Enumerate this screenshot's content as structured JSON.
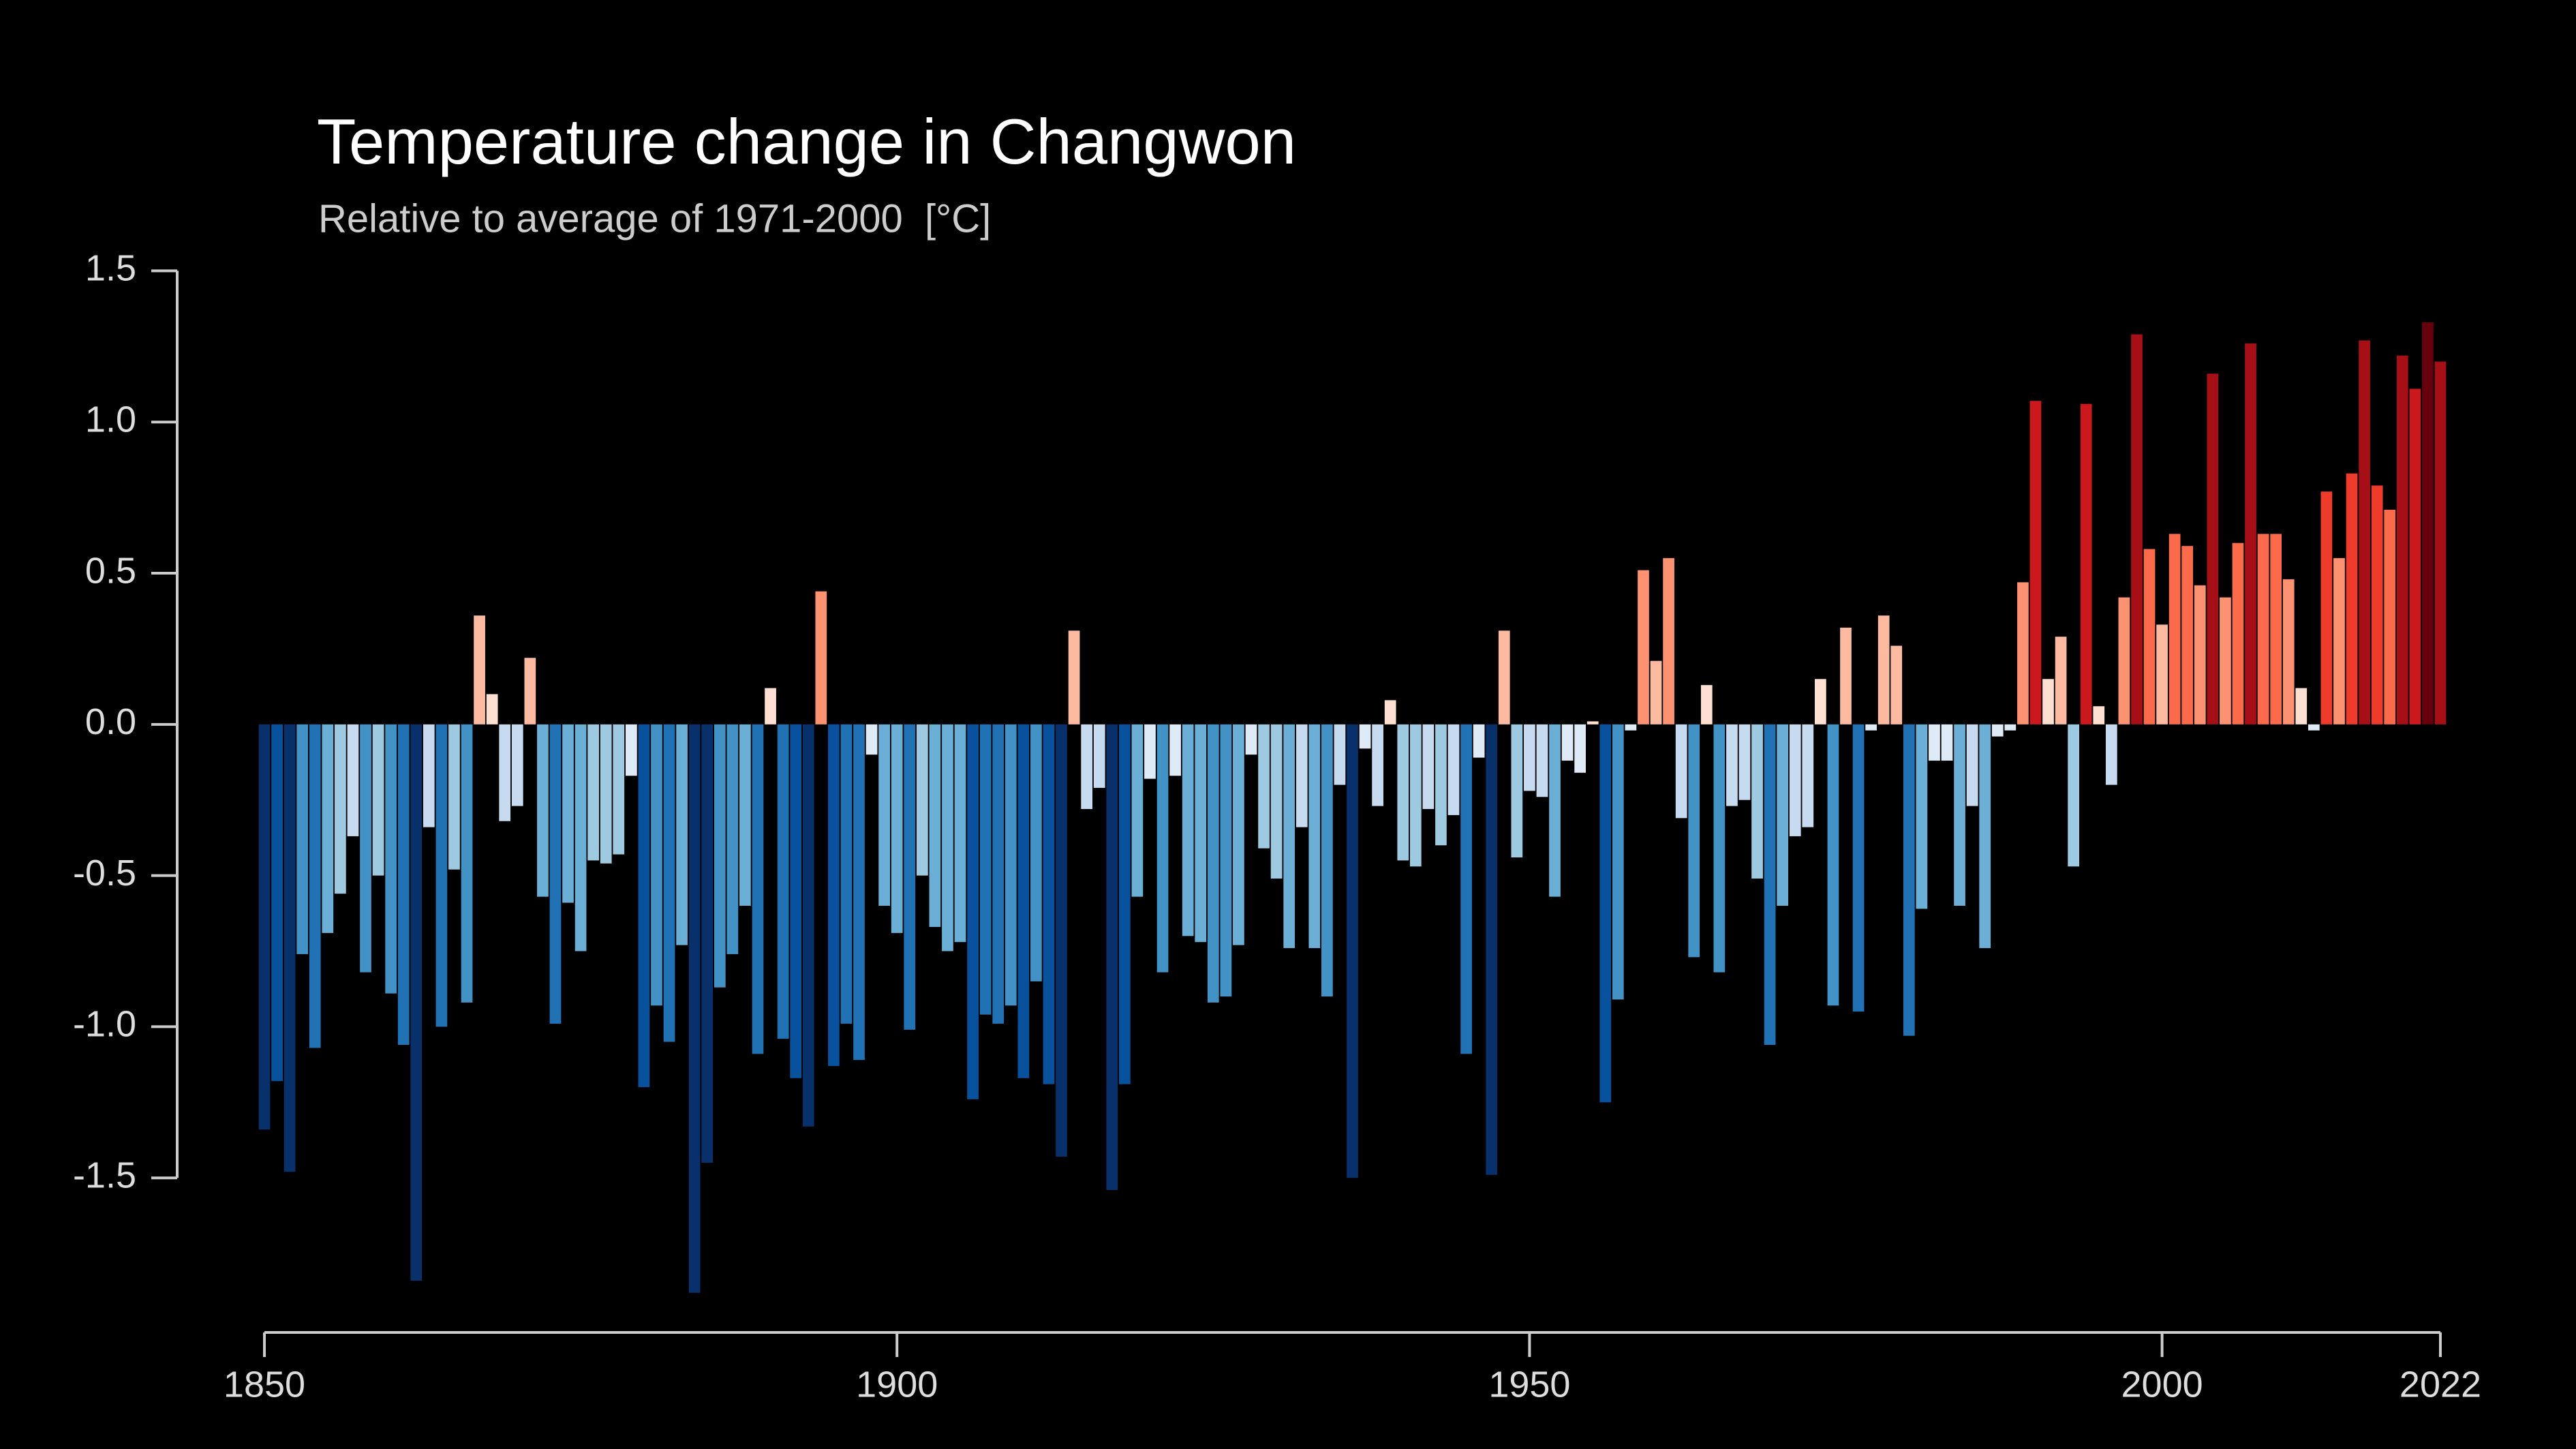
{
  "chart_data": {
    "type": "bar",
    "title": "Temperature change in Changwon",
    "subtitle": "Relative to average of 1971-2000  [°C]",
    "x": [
      1850,
      1851,
      1852,
      1853,
      1854,
      1855,
      1856,
      1857,
      1858,
      1859,
      1860,
      1861,
      1862,
      1863,
      1864,
      1865,
      1866,
      1867,
      1868,
      1869,
      1870,
      1871,
      1872,
      1873,
      1874,
      1875,
      1876,
      1877,
      1878,
      1879,
      1880,
      1881,
      1882,
      1883,
      1884,
      1885,
      1886,
      1887,
      1888,
      1889,
      1890,
      1891,
      1892,
      1893,
      1894,
      1895,
      1896,
      1897,
      1898,
      1899,
      1900,
      1901,
      1902,
      1903,
      1904,
      1905,
      1906,
      1907,
      1908,
      1909,
      1910,
      1911,
      1912,
      1913,
      1914,
      1915,
      1916,
      1917,
      1918,
      1919,
      1920,
      1921,
      1922,
      1923,
      1924,
      1925,
      1926,
      1927,
      1928,
      1929,
      1930,
      1931,
      1932,
      1933,
      1934,
      1935,
      1936,
      1937,
      1938,
      1939,
      1940,
      1941,
      1942,
      1943,
      1944,
      1945,
      1946,
      1947,
      1948,
      1949,
      1950,
      1951,
      1952,
      1953,
      1954,
      1955,
      1956,
      1957,
      1958,
      1959,
      1960,
      1961,
      1962,
      1963,
      1964,
      1965,
      1966,
      1967,
      1968,
      1969,
      1970,
      1971,
      1972,
      1973,
      1974,
      1975,
      1976,
      1977,
      1978,
      1979,
      1980,
      1981,
      1982,
      1983,
      1984,
      1985,
      1986,
      1987,
      1988,
      1989,
      1990,
      1991,
      1992,
      1993,
      1994,
      1995,
      1996,
      1997,
      1998,
      1999,
      2000,
      2001,
      2002,
      2003,
      2004,
      2005,
      2006,
      2007,
      2008,
      2009,
      2010,
      2011,
      2012,
      2013,
      2014,
      2015,
      2016,
      2017,
      2018,
      2019,
      2020,
      2021,
      2022
    ],
    "values": [
      -1.34,
      -1.18,
      -1.48,
      -0.76,
      -1.07,
      -0.69,
      -0.56,
      -0.37,
      -0.82,
      -0.5,
      -0.89,
      -1.06,
      -1.84,
      -0.34,
      -1.0,
      -0.48,
      -0.92,
      0.36,
      0.1,
      -0.32,
      -0.27,
      0.22,
      -0.57,
      -0.99,
      -0.59,
      -0.75,
      -0.45,
      -0.46,
      -0.43,
      -0.17,
      -1.2,
      -0.93,
      -1.05,
      -0.73,
      -1.88,
      -1.45,
      -0.87,
      -0.76,
      -0.6,
      -1.09,
      0.12,
      -1.04,
      -1.17,
      -1.33,
      0.44,
      -1.13,
      -0.99,
      -1.11,
      -0.1,
      -0.6,
      -0.69,
      -1.01,
      -0.5,
      -0.67,
      -0.75,
      -0.72,
      -1.24,
      -0.96,
      -0.99,
      -0.93,
      -1.17,
      -0.85,
      -1.19,
      -1.43,
      0.31,
      -0.28,
      -0.21,
      -1.54,
      -1.19,
      -0.57,
      -0.18,
      -0.82,
      -0.17,
      -0.7,
      -0.72,
      -0.92,
      -0.9,
      -0.73,
      -0.1,
      -0.41,
      -0.51,
      -0.74,
      -0.34,
      -0.74,
      -0.9,
      -0.2,
      -1.5,
      -0.08,
      -0.27,
      0.08,
      -0.45,
      -0.47,
      -0.28,
      -0.4,
      -0.3,
      -1.09,
      -0.11,
      -1.49,
      0.31,
      -0.44,
      -0.22,
      -0.24,
      -0.57,
      -0.12,
      -0.16,
      0.01,
      -1.25,
      -0.91,
      -0.02,
      0.51,
      0.21,
      0.55,
      -0.31,
      -0.77,
      0.13,
      -0.82,
      -0.27,
      -0.25,
      -0.51,
      -1.06,
      -0.6,
      -0.37,
      -0.34,
      0.15,
      -0.93,
      0.32,
      -0.95,
      -0.02,
      0.36,
      0.26,
      -1.03,
      -0.61,
      -0.12,
      -0.12,
      -0.6,
      -0.27,
      -0.74,
      -0.04,
      -0.02,
      0.47,
      1.07,
      0.15,
      0.29,
      -0.47,
      1.06,
      0.06,
      -0.2,
      0.42,
      1.29,
      0.58,
      0.33,
      0.63,
      0.59,
      0.46,
      1.16,
      0.42,
      0.6,
      1.26,
      0.63,
      0.63,
      0.48,
      0.12,
      -0.02,
      0.77,
      0.55,
      0.83,
      1.27,
      0.79,
      0.71,
      1.22,
      1.11,
      1.33,
      1.2
    ],
    "colormap": [
      "#08306b",
      "#08519c",
      "#2171b5",
      "#4292c6",
      "#6baed6",
      "#9ecae1",
      "#c6dbef",
      "#deebf7",
      "#fee0d2",
      "#fcbba1",
      "#fc9272",
      "#fb6a4a",
      "#ef3b2c",
      "#cb181d",
      "#a50f15",
      "#67000d"
    ],
    "xlim": [
      1850,
      2022
    ],
    "xticks": [
      1850,
      1900,
      1950,
      2000,
      2022
    ],
    "ylim": [
      -2.0,
      1.9
    ],
    "yticks": [
      1.5,
      {
        "value": 1,
        "label": "1.0"
      },
      0.5,
      {
        "value": 0,
        "label": "0.0"
      },
      -0.5,
      {
        "value": -1,
        "label": "-1.0"
      },
      -1.5
    ]
  }
}
